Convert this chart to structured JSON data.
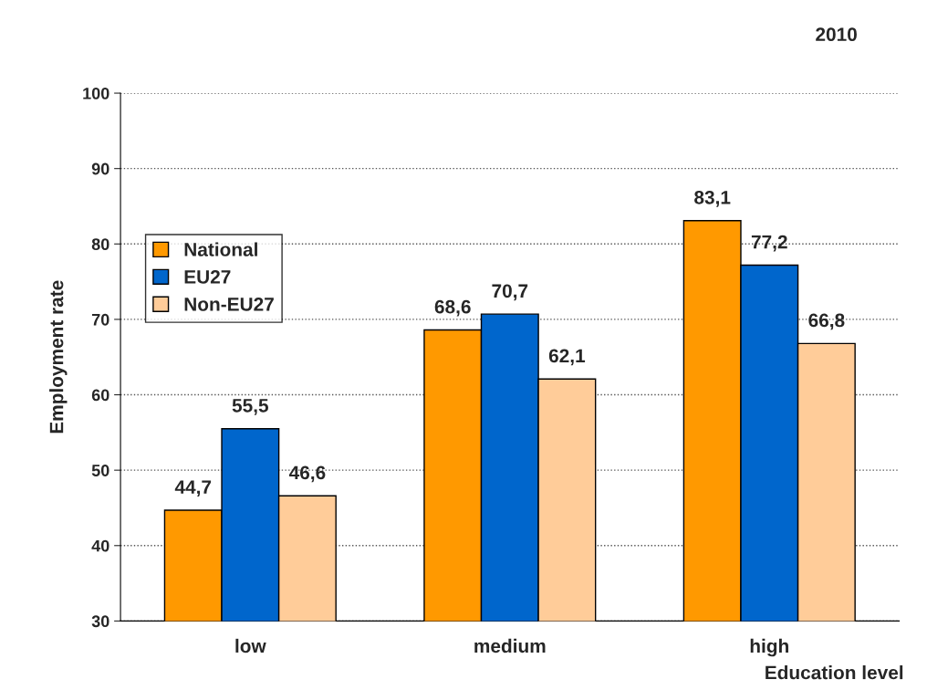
{
  "chart_data": {
    "type": "bar",
    "title": "2010",
    "xlabel": "Education level",
    "ylabel": "Employment rate",
    "categories": [
      "low",
      "medium",
      "high"
    ],
    "series": [
      {
        "name": "National",
        "color": "#ff9900",
        "values": [
          44.7,
          68.6,
          83.1
        ],
        "value_labels": [
          "44,7",
          "68,6",
          "83,1"
        ]
      },
      {
        "name": "EU27",
        "color": "#0066cc",
        "values": [
          55.5,
          70.7,
          77.2
        ],
        "value_labels": [
          "55,5",
          "70,7",
          "77,2"
        ]
      },
      {
        "name": "Non-EU27",
        "color": "#ffcc99",
        "values": [
          46.6,
          62.1,
          66.8
        ],
        "value_labels": [
          "46,6",
          "62,1",
          "66,8"
        ]
      }
    ],
    "ylim": [
      30,
      100
    ],
    "yticks": [
      30,
      40,
      50,
      60,
      70,
      80,
      90,
      100
    ],
    "grid": "y",
    "legend": "top left"
  }
}
